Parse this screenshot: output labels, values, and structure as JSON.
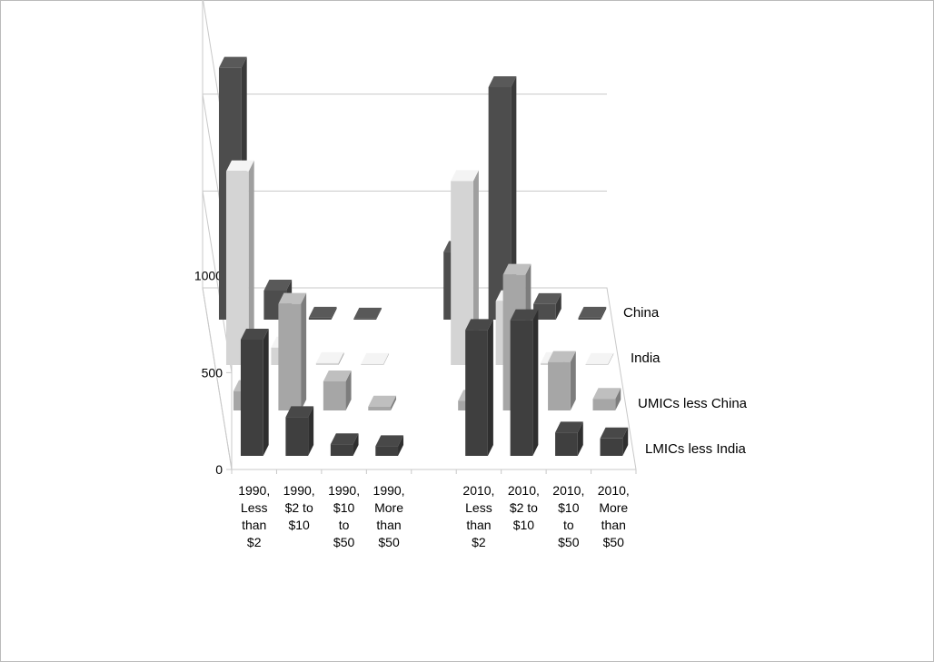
{
  "chart_data": {
    "type": "bar3d",
    "categories": [
      "1990, Less than $2",
      "1990, $2 to $10",
      "1990, $10 to $50",
      "1990, More than $50",
      null,
      "2010, Less than $2",
      "2010, $2 to $10",
      "2010, $10 to $50",
      "2010, More than $50"
    ],
    "series": [
      {
        "name": "LMICs less India",
        "color": "#3f3f3f",
        "values": [
          600,
          200,
          60,
          50,
          null,
          650,
          700,
          120,
          90
        ]
      },
      {
        "name": "UMICs less China",
        "color": "#a6a6a6",
        "values": [
          100,
          550,
          150,
          20,
          null,
          50,
          700,
          250,
          60
        ]
      },
      {
        "name": "India",
        "color": "#d4d4d4",
        "values": [
          1000,
          90,
          10,
          5,
          null,
          950,
          330,
          10,
          5
        ]
      },
      {
        "name": "China",
        "color": "#4d4d4d",
        "values": [
          1300,
          150,
          10,
          5,
          null,
          350,
          1200,
          80,
          10
        ]
      }
    ],
    "ylim": [
      0,
      1500
    ],
    "yticks": [
      0,
      500,
      1000
    ],
    "grid": true
  }
}
